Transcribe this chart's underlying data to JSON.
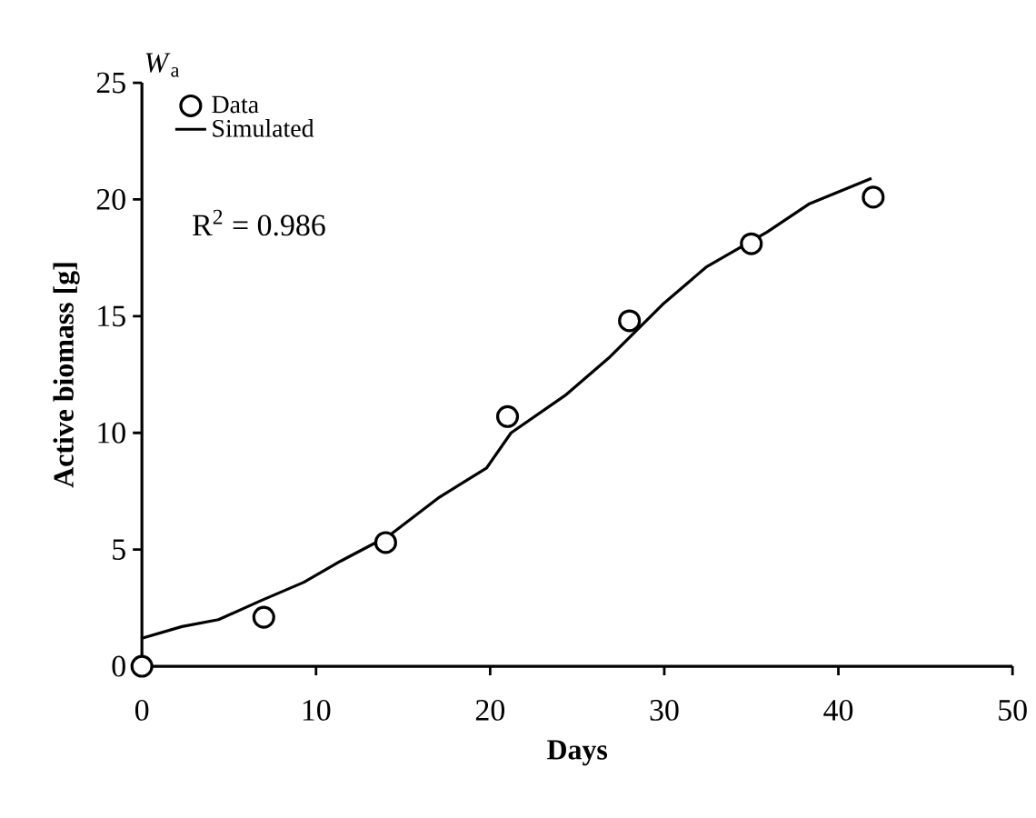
{
  "chart_data": {
    "type": "line",
    "xlabel": "Days",
    "ylabel": "Active biomass [g]",
    "annotations": [
      "*W*$_{a}$",
      "R$^{2}$ = 0.986"
    ],
    "series": [
      {
        "name": "Data",
        "type": "scatter",
        "marker": "circle",
        "color": "#000000",
        "x": [
          0,
          7,
          14,
          21,
          28,
          35,
          42
        ],
        "values": [
          0,
          2.1,
          5.3,
          10.7,
          14.8,
          18.1,
          20.1
        ]
      },
      {
        "name": "Simulated",
        "type": "line",
        "marker": "none",
        "line_style": "solid",
        "color": "#000000",
        "x": [
          0,
          2.3,
          4.4,
          6.8,
          9.3,
          11.4,
          14.2,
          17.0,
          19.8,
          21.2,
          24.3,
          26.8,
          29.9,
          32.4,
          35.9,
          38.3,
          41.9
        ],
        "values": [
          1.2,
          1.7,
          2.0,
          2.8,
          3.6,
          4.5,
          5.6,
          7.2,
          8.5,
          10.0,
          11.6,
          13.2,
          15.5,
          17.1,
          18.6,
          19.8,
          20.9
        ]
      }
    ],
    "xlim": [
      0,
      50
    ],
    "ylim": [
      0,
      25
    ],
    "xticks": [
      0,
      10,
      20,
      30,
      40,
      50
    ],
    "yticks": [
      0,
      5,
      10,
      15,
      20,
      25
    ],
    "grid": false,
    "legend": "top left"
  }
}
